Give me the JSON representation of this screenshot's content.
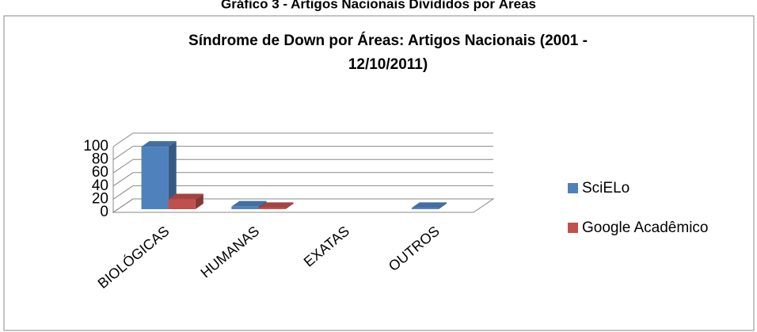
{
  "page_title": "Gráfico 3 - Artigos Nacionais Divididos por Áreas",
  "chart_data": {
    "type": "bar3d",
    "title": "Síndrome de Down por Áreas: Artigos Nacionais (2001 - 12/10/2011)",
    "categories": [
      "BIOLÓGICAS",
      "HUMANAS",
      "EXATAS",
      "OUTROS"
    ],
    "series": [
      {
        "name": "SciELo",
        "color": "#4f81bd",
        "values": [
          95,
          4,
          0,
          2
        ]
      },
      {
        "name": "Google Acadêmico",
        "color": "#c0504d",
        "values": [
          15,
          2,
          0,
          0
        ]
      }
    ],
    "ylim": [
      0,
      100
    ],
    "yticks": [
      0,
      20,
      40,
      60,
      80,
      100
    ],
    "grid": true,
    "legend": "right"
  }
}
